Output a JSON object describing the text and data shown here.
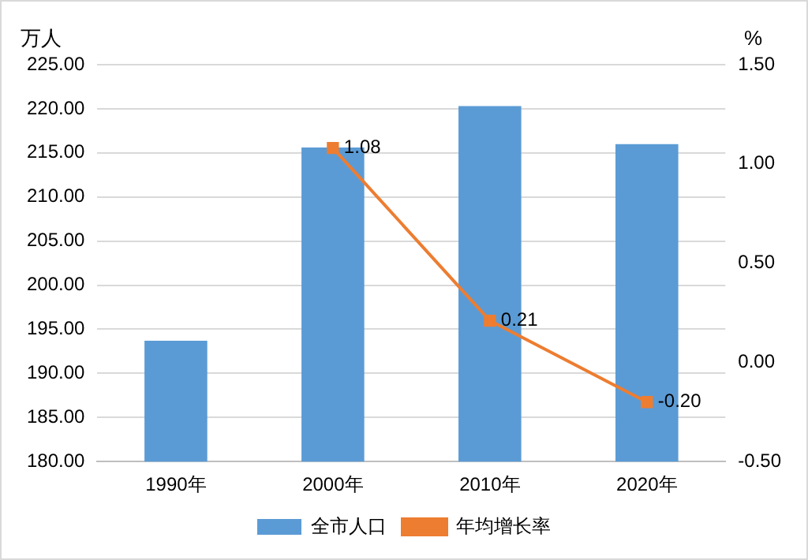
{
  "chart_data": {
    "type": "bar",
    "categories": [
      "1990年",
      "2000年",
      "2010年",
      "2020年"
    ],
    "ylabel": "万人",
    "y2label": "%",
    "series": [
      {
        "name": "全市人口",
        "color": "#5b9bd5",
        "values": [
          193.7,
          215.6,
          220.3,
          216.0
        ]
      },
      {
        "name": "年均增长率",
        "type": "line",
        "axis": "y2",
        "color": "#ed7d31",
        "values": [
          null,
          1.08,
          0.21,
          -0.2
        ],
        "value_labels": [
          null,
          "1.08",
          "0.21",
          "-0.20"
        ]
      }
    ],
    "ylim": [
      180,
      225
    ],
    "yticks": [
      {
        "value": 180,
        "label": "180.00"
      },
      {
        "value": 185,
        "label": "185.00"
      },
      {
        "value": 190,
        "label": "190.00"
      },
      {
        "value": 195,
        "label": "195.00"
      },
      {
        "value": 200,
        "label": "200.00"
      },
      {
        "value": 205,
        "label": "205.00"
      },
      {
        "value": 210,
        "label": "210.00"
      },
      {
        "value": 215,
        "label": "215.00"
      },
      {
        "value": 220,
        "label": "220.00"
      },
      {
        "value": 225,
        "label": "225.00"
      }
    ],
    "y2lim": [
      -0.5,
      1.5
    ],
    "y2ticks": [
      {
        "value": -0.5,
        "label": "-0.50"
      },
      {
        "value": 0,
        "label": "0.00"
      },
      {
        "value": 0.5,
        "label": "0.50"
      },
      {
        "value": 1,
        "label": "1.00"
      },
      {
        "value": 1.5,
        "label": "1.50"
      }
    ],
    "grid": "y",
    "legend": "bottom",
    "marker": "square",
    "line_style": "solid"
  }
}
